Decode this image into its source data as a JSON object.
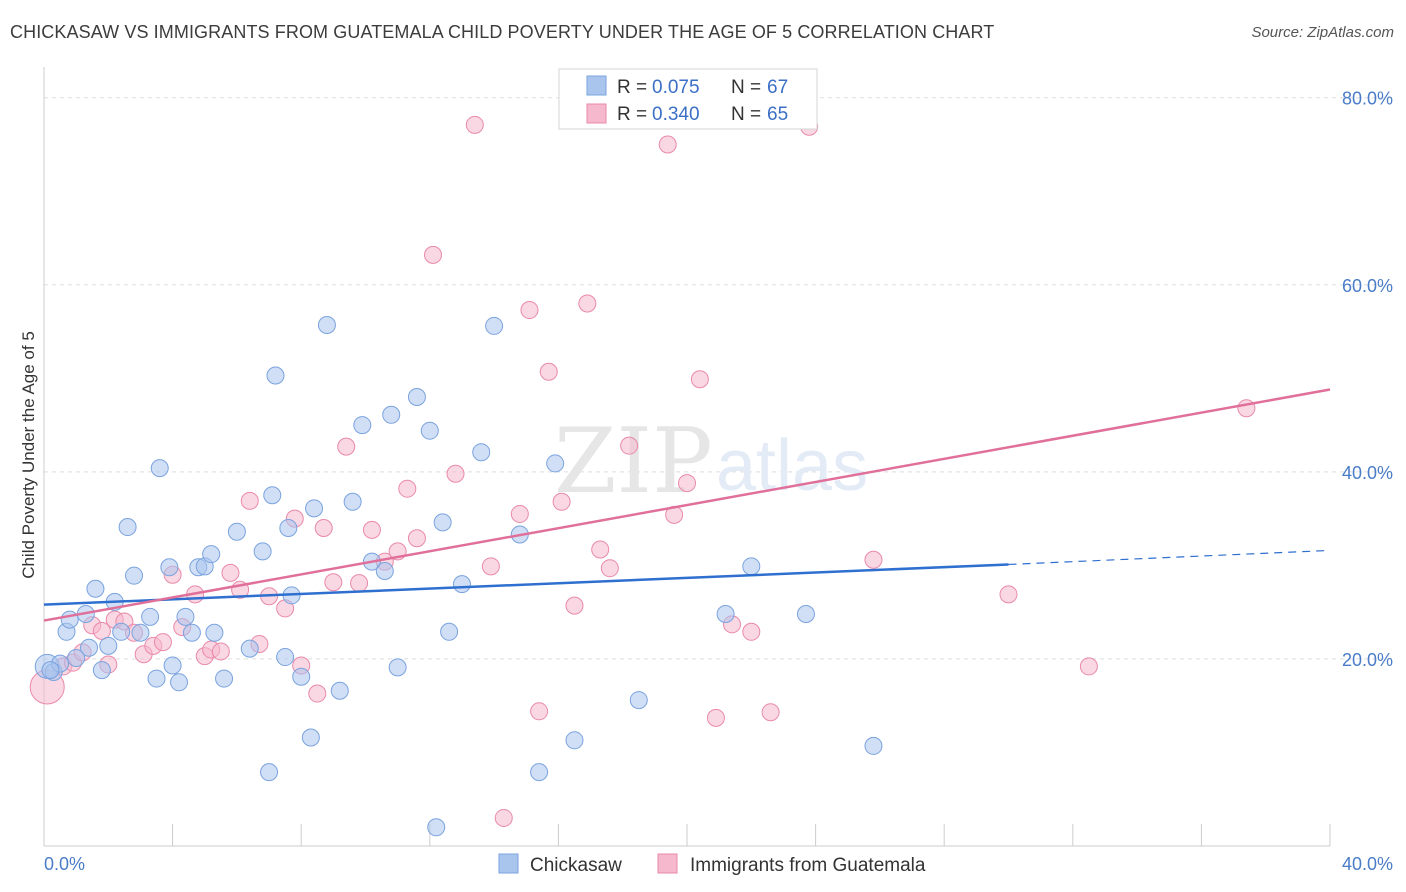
{
  "title": "CHICKASAW VS IMMIGRANTS FROM GUATEMALA CHILD POVERTY UNDER THE AGE OF 5 CORRELATION CHART",
  "source": "Source: ZipAtlas.com",
  "watermark": {
    "zip": "ZIP",
    "atlas": "atlas"
  },
  "colors": {
    "blue_fill": "#a9c5ee",
    "blue_stroke": "#7aa3de",
    "blue_line": "#2f6fcf",
    "pink_fill": "#f6b8cc",
    "pink_stroke": "#e98aa9",
    "pink_line": "#e0709a",
    "tick_text": "#4a7cc7",
    "grid": "#dddddd"
  },
  "legend_top": {
    "rows": [
      {
        "r_label": "R = ",
        "r_value": "0.075",
        "n_label": "N = ",
        "n_value": "67",
        "series": "blue"
      },
      {
        "r_label": "R = ",
        "r_value": "0.340",
        "n_label": "N = ",
        "n_value": "65",
        "series": "pink"
      }
    ]
  },
  "legend_bottom": [
    {
      "label": "Chickasaw",
      "series": "blue"
    },
    {
      "label": "Immigrants from Guatemala",
      "series": "pink"
    }
  ],
  "chart_data": {
    "type": "scatter",
    "title": "CHICKASAW VS IMMIGRANTS FROM GUATEMALA CHILD POVERTY UNDER THE AGE OF 5 CORRELATION CHART",
    "xlabel": "",
    "ylabel": "Child Poverty Under the Age of 5",
    "xlim": [
      0,
      40
    ],
    "ylim": [
      0,
      82
    ],
    "x_tick_labels": [
      "0.0%",
      "40.0%"
    ],
    "y_ticks": [
      20,
      40,
      60,
      80
    ],
    "y_tick_labels": [
      "20.0%",
      "40.0%",
      "60.0%",
      "80.0%"
    ],
    "grid": true,
    "legend": "top-center",
    "series": [
      {
        "name": "Chickasaw",
        "color": "#a9c5ee",
        "trend": {
          "x": [
            0,
            30
          ],
          "y": [
            25.8,
            30.1
          ],
          "dashed_extension_to": [
            40,
            31.6
          ]
        },
        "points": [
          [
            0.1,
            19.2
          ],
          [
            0.3,
            18.6
          ],
          [
            0.5,
            19.5
          ],
          [
            0.7,
            22.9
          ],
          [
            0.8,
            24.2
          ],
          [
            1.0,
            20.1
          ],
          [
            1.3,
            24.8
          ],
          [
            1.4,
            21.2
          ],
          [
            1.6,
            27.5
          ],
          [
            1.8,
            18.8
          ],
          [
            2.0,
            21.4
          ],
          [
            2.2,
            26.1
          ],
          [
            2.4,
            22.9
          ],
          [
            2.6,
            34.1
          ],
          [
            2.8,
            28.9
          ],
          [
            3.0,
            22.8
          ],
          [
            3.3,
            24.5
          ],
          [
            3.5,
            17.9
          ],
          [
            3.6,
            40.4
          ],
          [
            3.9,
            29.8
          ],
          [
            4.0,
            19.3
          ],
          [
            4.2,
            17.5
          ],
          [
            4.4,
            24.5
          ],
          [
            4.6,
            22.8
          ],
          [
            4.8,
            29.8
          ],
          [
            5.0,
            29.9
          ],
          [
            5.2,
            31.2
          ],
          [
            5.3,
            22.8
          ],
          [
            5.6,
            17.9
          ],
          [
            6.0,
            33.6
          ],
          [
            6.4,
            21.1
          ],
          [
            6.8,
            31.5
          ],
          [
            7.0,
            7.9
          ],
          [
            7.1,
            37.5
          ],
          [
            7.2,
            50.3
          ],
          [
            7.5,
            20.2
          ],
          [
            7.6,
            34.0
          ],
          [
            7.7,
            26.8
          ],
          [
            8.0,
            18.1
          ],
          [
            8.3,
            11.6
          ],
          [
            8.4,
            36.1
          ],
          [
            8.8,
            55.7
          ],
          [
            9.2,
            16.6
          ],
          [
            9.6,
            36.8
          ],
          [
            9.9,
            45.0
          ],
          [
            10.2,
            30.4
          ],
          [
            10.6,
            29.4
          ],
          [
            10.8,
            46.1
          ],
          [
            11.0,
            19.1
          ],
          [
            11.6,
            48.0
          ],
          [
            12.0,
            44.4
          ],
          [
            12.2,
            2.0
          ],
          [
            12.4,
            34.6
          ],
          [
            12.6,
            22.9
          ],
          [
            13.0,
            28.0
          ],
          [
            13.6,
            42.1
          ],
          [
            14.0,
            55.6
          ],
          [
            14.8,
            33.3
          ],
          [
            15.4,
            7.9
          ],
          [
            15.9,
            40.9
          ],
          [
            16.5,
            11.3
          ],
          [
            18.5,
            15.6
          ],
          [
            21.2,
            24.8
          ],
          [
            22.0,
            29.9
          ],
          [
            23.7,
            24.8
          ],
          [
            25.8,
            10.7
          ],
          [
            0.2,
            18.8
          ]
        ]
      },
      {
        "name": "Immigrants from Guatemala",
        "color": "#f6b8cc",
        "trend": {
          "x": [
            0,
            40
          ],
          "y": [
            24.1,
            48.8
          ]
        },
        "points": [
          [
            0.1,
            17.0
          ],
          [
            0.6,
            19.2
          ],
          [
            0.9,
            19.6
          ],
          [
            1.2,
            20.7
          ],
          [
            1.5,
            23.6
          ],
          [
            1.8,
            23.0
          ],
          [
            2.0,
            19.4
          ],
          [
            2.2,
            24.2
          ],
          [
            2.5,
            24.0
          ],
          [
            2.8,
            22.8
          ],
          [
            3.1,
            20.5
          ],
          [
            3.4,
            21.4
          ],
          [
            3.7,
            21.8
          ],
          [
            4.0,
            29.0
          ],
          [
            4.3,
            23.4
          ],
          [
            4.7,
            26.9
          ],
          [
            5.0,
            20.3
          ],
          [
            5.2,
            21.0
          ],
          [
            5.5,
            20.8
          ],
          [
            5.8,
            29.2
          ],
          [
            6.1,
            27.4
          ],
          [
            6.4,
            36.9
          ],
          [
            6.7,
            21.6
          ],
          [
            7.0,
            26.7
          ],
          [
            7.5,
            25.4
          ],
          [
            7.8,
            35.0
          ],
          [
            8.0,
            19.3
          ],
          [
            8.5,
            16.3
          ],
          [
            8.7,
            34.0
          ],
          [
            9.0,
            28.2
          ],
          [
            9.4,
            42.7
          ],
          [
            9.8,
            28.1
          ],
          [
            10.2,
            33.8
          ],
          [
            10.6,
            30.4
          ],
          [
            11.0,
            31.5
          ],
          [
            11.3,
            38.2
          ],
          [
            11.6,
            32.9
          ],
          [
            12.1,
            63.2
          ],
          [
            12.8,
            39.8
          ],
          [
            13.4,
            77.1
          ],
          [
            13.9,
            29.9
          ],
          [
            14.3,
            3.0
          ],
          [
            14.8,
            35.5
          ],
          [
            15.1,
            57.3
          ],
          [
            15.4,
            14.4
          ],
          [
            15.7,
            50.7
          ],
          [
            16.1,
            36.8
          ],
          [
            16.5,
            25.7
          ],
          [
            16.9,
            58.0
          ],
          [
            17.3,
            31.7
          ],
          [
            17.6,
            29.7
          ],
          [
            18.2,
            42.8
          ],
          [
            19.4,
            75.0
          ],
          [
            19.6,
            35.4
          ],
          [
            20.0,
            38.8
          ],
          [
            20.4,
            49.9
          ],
          [
            20.9,
            13.7
          ],
          [
            21.4,
            23.7
          ],
          [
            22.0,
            22.9
          ],
          [
            22.6,
            14.3
          ],
          [
            23.8,
            76.9
          ],
          [
            25.8,
            30.6
          ],
          [
            30.0,
            26.9
          ],
          [
            32.5,
            19.2
          ],
          [
            37.4,
            46.8
          ]
        ]
      }
    ]
  }
}
